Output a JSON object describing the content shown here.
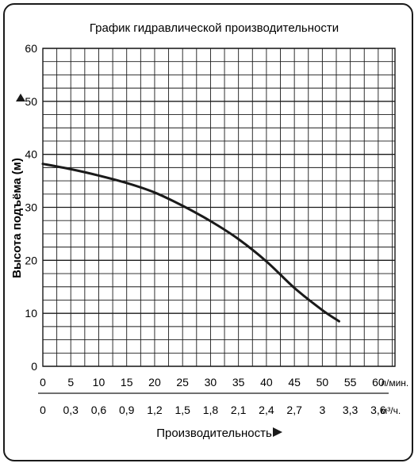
{
  "chart_data": {
    "type": "line",
    "title": "График гидравлической производительности",
    "ylabel": "Высота подъёма (м)",
    "xlabel": "Производительность",
    "ylim": [
      0,
      60
    ],
    "xlim": [
      0,
      63
    ],
    "y_ticks": [
      "0",
      "10",
      "20",
      "30",
      "40",
      "50",
      "60"
    ],
    "x_ticks_primary": [
      "0",
      "5",
      "10",
      "15",
      "20",
      "25",
      "30",
      "35",
      "40",
      "45",
      "50",
      "55",
      "60"
    ],
    "x_unit_primary": "л/мин.",
    "x_ticks_secondary": [
      "0",
      "0,3",
      "0,6",
      "0,9",
      "1,2",
      "1,5",
      "1,8",
      "2,1",
      "2,4",
      "2,7",
      "3",
      "3,3",
      "3,6"
    ],
    "x_unit_secondary": "м³/ч.",
    "grid": true,
    "series": [
      {
        "x": [
          0,
          5,
          10,
          15,
          20,
          25,
          30,
          35,
          40,
          45,
          50,
          53
        ],
        "y": [
          38.2,
          37.2,
          36.0,
          34.6,
          32.8,
          30.3,
          27.4,
          24.0,
          19.8,
          14.8,
          10.6,
          8.5
        ],
        "color": "#1a1a1a"
      }
    ]
  }
}
